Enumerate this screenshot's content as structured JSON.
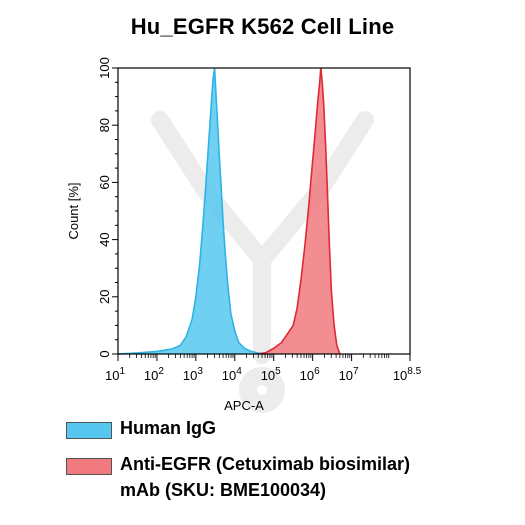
{
  "chart_data": {
    "type": "area",
    "title": "Hu_EGFR K562 Cell Line",
    "xlabel": "APC-A",
    "ylabel": "Count [%]",
    "xscale": "log10",
    "xlim": [
      1,
      8.5
    ],
    "ylim": [
      0,
      100
    ],
    "x_ticks": [
      {
        "value": 1,
        "base": "10",
        "exp": "1"
      },
      {
        "value": 2,
        "base": "10",
        "exp": "2"
      },
      {
        "value": 3,
        "base": "10",
        "exp": "3"
      },
      {
        "value": 4,
        "base": "10",
        "exp": "4"
      },
      {
        "value": 5,
        "base": "10",
        "exp": "5"
      },
      {
        "value": 6,
        "base": "10",
        "exp": "6"
      },
      {
        "value": 7,
        "base": "10",
        "exp": "7"
      },
      {
        "value": 8.5,
        "base": "10",
        "exp": "8.5"
      }
    ],
    "y_ticks": [
      "0",
      "20",
      "40",
      "60",
      "80",
      "100"
    ],
    "series": [
      {
        "name": "Human IgG",
        "color": "#56c8f0",
        "stroke": "#2fb3e6",
        "points": [
          [
            1.0,
            0
          ],
          [
            1.5,
            0.4
          ],
          [
            2.0,
            0.9
          ],
          [
            2.4,
            1.8
          ],
          [
            2.6,
            3
          ],
          [
            2.75,
            6
          ],
          [
            2.9,
            12
          ],
          [
            3.0,
            20
          ],
          [
            3.1,
            32
          ],
          [
            3.18,
            45
          ],
          [
            3.25,
            58
          ],
          [
            3.3,
            68
          ],
          [
            3.35,
            78
          ],
          [
            3.4,
            88
          ],
          [
            3.44,
            96
          ],
          [
            3.48,
            100
          ],
          [
            3.52,
            90
          ],
          [
            3.56,
            80
          ],
          [
            3.6,
            70
          ],
          [
            3.65,
            58
          ],
          [
            3.7,
            46
          ],
          [
            3.76,
            34
          ],
          [
            3.82,
            24
          ],
          [
            3.9,
            14
          ],
          [
            4.0,
            8
          ],
          [
            4.1,
            4
          ],
          [
            4.25,
            2
          ],
          [
            4.4,
            1
          ],
          [
            4.6,
            0.3
          ],
          [
            4.8,
            0
          ]
        ]
      },
      {
        "name": "Anti-EGFR (Cetuximab biosimilar) mAb (SKU: BME100034)",
        "color": "#f07a7e",
        "stroke": "#dd2a34",
        "points": [
          [
            4.6,
            0
          ],
          [
            4.8,
            0.5
          ],
          [
            5.0,
            2
          ],
          [
            5.2,
            4
          ],
          [
            5.35,
            7
          ],
          [
            5.5,
            10
          ],
          [
            5.6,
            16
          ],
          [
            5.7,
            26
          ],
          [
            5.8,
            38
          ],
          [
            5.9,
            52
          ],
          [
            5.97,
            63
          ],
          [
            6.03,
            72
          ],
          [
            6.08,
            80
          ],
          [
            6.13,
            88
          ],
          [
            6.18,
            95
          ],
          [
            6.21,
            100
          ],
          [
            6.24,
            96
          ],
          [
            6.28,
            88
          ],
          [
            6.33,
            74
          ],
          [
            6.38,
            56
          ],
          [
            6.43,
            38
          ],
          [
            6.48,
            22
          ],
          [
            6.55,
            10
          ],
          [
            6.62,
            3
          ],
          [
            6.7,
            0
          ]
        ]
      }
    ],
    "legend": "bottom"
  },
  "legend_items": {
    "igg_label": "Human IgG",
    "egfr_label_line1": "Anti-EGFR (Cetuximab biosimilar)",
    "egfr_label_line2": "mAb (SKU: BME100034)"
  }
}
